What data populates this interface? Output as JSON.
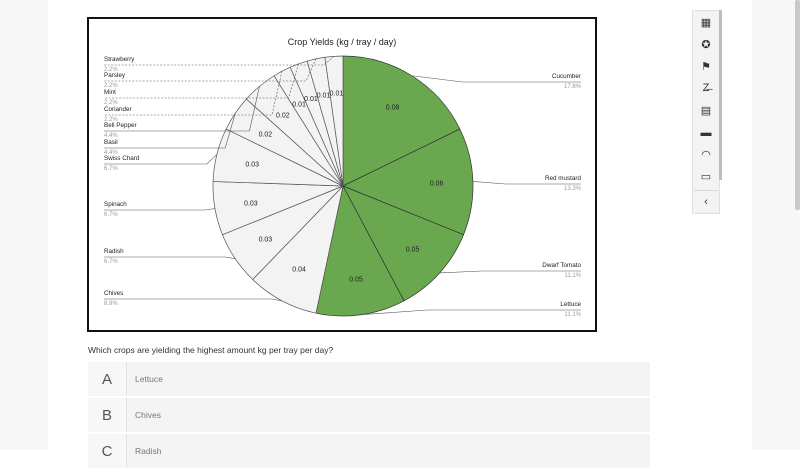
{
  "chart_data": {
    "type": "pie",
    "title": "Crop Yields  (kg / tray / day)",
    "slices": [
      {
        "label": "Cucumber",
        "value": 0.08,
        "pct": "17.8%",
        "color": "#6aa84f"
      },
      {
        "label": "Red mustard",
        "value": 0.06,
        "pct": "13.3%",
        "color": "#6aa84f"
      },
      {
        "label": "Dwarf Tomato",
        "value": 0.05,
        "pct": "11.1%",
        "color": "#6aa84f"
      },
      {
        "label": "Lettuce",
        "value": 0.05,
        "pct": "11.1%",
        "color": "#6aa84f"
      },
      {
        "label": "Chives",
        "value": 0.04,
        "pct": "8.9%",
        "color": "#f3f3f3"
      },
      {
        "label": "Radish",
        "value": 0.03,
        "pct": "6.7%",
        "color": "#f3f3f3"
      },
      {
        "label": "Spinach",
        "value": 0.03,
        "pct": "6.7%",
        "color": "#f3f3f3"
      },
      {
        "label": "Swiss Chard",
        "value": 0.03,
        "pct": "6.7%",
        "color": "#f3f3f3"
      },
      {
        "label": "Basil",
        "value": 0.02,
        "pct": "4.4%",
        "color": "#f3f3f3"
      },
      {
        "label": "Bell Pepper",
        "value": 0.02,
        "pct": "4.4%",
        "color": "#f3f3f3"
      },
      {
        "label": "Coriander",
        "value": 0.01,
        "pct": "2.2%",
        "color": "#f3f3f3"
      },
      {
        "label": "Mint",
        "value": 0.01,
        "pct": "2.2%",
        "color": "#f3f3f3"
      },
      {
        "label": "Parsley",
        "value": 0.01,
        "pct": "2.2%",
        "color": "#f3f3f3"
      },
      {
        "label": "Strawberry",
        "value": 0.01,
        "pct": "2.2%",
        "color": "#f3f3f3"
      }
    ]
  },
  "question": "Which crops are yielding the highest amount kg per tray per day?",
  "options": [
    {
      "letter": "A",
      "text": "Lettuce"
    },
    {
      "letter": "B",
      "text": "Chives"
    },
    {
      "letter": "C",
      "text": "Radish"
    }
  ],
  "toolbar": {
    "icons": [
      "calendar-icon",
      "accessibility-icon",
      "flag-icon",
      "strikethrough-icon",
      "calculator-icon",
      "line-reader-icon",
      "protractor-icon",
      "more-icon"
    ],
    "glyphs": [
      "▦",
      "✪",
      "⚑",
      "Z̶",
      "▤",
      "▬",
      "◠",
      "▭"
    ],
    "collapse_glyph": "‹"
  }
}
